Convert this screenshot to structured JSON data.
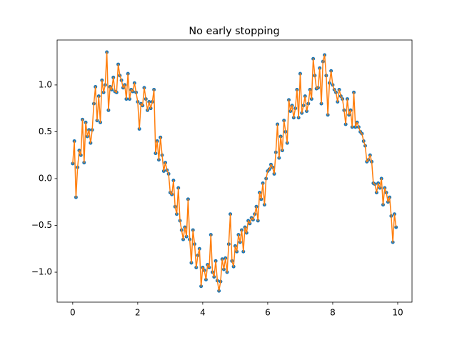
{
  "chart_data": {
    "type": "scatter-line",
    "title": "No early stopping",
    "x": [
      0,
      0.05,
      0.1,
      0.15,
      0.2,
      0.25,
      0.3,
      0.35,
      0.4,
      0.45,
      0.5,
      0.55,
      0.6,
      0.65,
      0.7,
      0.75,
      0.8,
      0.85,
      0.9,
      0.95,
      1,
      1.05,
      1.1,
      1.15,
      1.2,
      1.25,
      1.3,
      1.35,
      1.4,
      1.45,
      1.5,
      1.55,
      1.6,
      1.65,
      1.7,
      1.75,
      1.8,
      1.85,
      1.9,
      1.95,
      2,
      2.05,
      2.1,
      2.15,
      2.2,
      2.25,
      2.3,
      2.35,
      2.4,
      2.45,
      2.5,
      2.55,
      2.6,
      2.65,
      2.7,
      2.75,
      2.8,
      2.85,
      2.9,
      2.95,
      3,
      3.05,
      3.1,
      3.15,
      3.2,
      3.25,
      3.3,
      3.35,
      3.4,
      3.45,
      3.5,
      3.55,
      3.6,
      3.65,
      3.7,
      3.75,
      3.8,
      3.85,
      3.9,
      3.95,
      4,
      4.05,
      4.1,
      4.15,
      4.2,
      4.25,
      4.3,
      4.35,
      4.4,
      4.45,
      4.5,
      4.55,
      4.6,
      4.65,
      4.7,
      4.75,
      4.8,
      4.85,
      4.9,
      4.95,
      5,
      5.05,
      5.1,
      5.15,
      5.2,
      5.25,
      5.3,
      5.35,
      5.4,
      5.45,
      5.5,
      5.55,
      5.6,
      5.65,
      5.7,
      5.75,
      5.8,
      5.85,
      5.9,
      5.95,
      6,
      6.05,
      6.1,
      6.15,
      6.2,
      6.25,
      6.3,
      6.35,
      6.4,
      6.45,
      6.5,
      6.55,
      6.6,
      6.65,
      6.7,
      6.75,
      6.8,
      6.85,
      6.9,
      6.95,
      7,
      7.05,
      7.1,
      7.15,
      7.2,
      7.25,
      7.3,
      7.35,
      7.4,
      7.45,
      7.5,
      7.55,
      7.6,
      7.65,
      7.7,
      7.75,
      7.8,
      7.85,
      7.9,
      7.95,
      8,
      8.05,
      8.1,
      8.15,
      8.2,
      8.25,
      8.3,
      8.35,
      8.4,
      8.45,
      8.5,
      8.55,
      8.6,
      8.65,
      8.7,
      8.75,
      8.8,
      8.85,
      8.9,
      8.95,
      9,
      9.05,
      9.1,
      9.15,
      9.2,
      9.25,
      9.3,
      9.35,
      9.4,
      9.45,
      9.5,
      9.55,
      9.6,
      9.65,
      9.7,
      9.75,
      9.8,
      9.85,
      9.9,
      9.95
    ],
    "values": [
      0.16,
      0.4,
      -0.2,
      0.12,
      0.3,
      0.25,
      0.63,
      0.17,
      0.6,
      0.45,
      0.52,
      0.38,
      0.52,
      0.8,
      0.98,
      0.62,
      0.88,
      0.6,
      1.05,
      0.92,
      1.0,
      1.35,
      0.73,
      0.98,
      0.95,
      1.08,
      0.93,
      0.92,
      1.22,
      1.1,
      1.05,
      0.97,
      1.0,
      0.85,
      1.12,
      0.85,
      0.95,
      0.93,
      1.02,
      0.92,
      0.82,
      0.53,
      0.8,
      0.78,
      0.97,
      0.85,
      0.73,
      0.82,
      0.75,
      0.82,
      0.95,
      0.27,
      0.4,
      0.2,
      0.44,
      0.25,
      0.08,
      0.17,
      0.09,
      0.05,
      -0.15,
      -0.17,
      -0.02,
      -0.3,
      -0.38,
      -0.1,
      -0.45,
      -0.55,
      -0.65,
      -0.52,
      -0.62,
      -0.22,
      -0.65,
      -0.9,
      -0.55,
      -0.7,
      -0.95,
      -0.82,
      -0.75,
      -1.15,
      -0.95,
      -0.98,
      -1.08,
      -0.92,
      -0.95,
      -0.6,
      -1.0,
      -1.05,
      -0.88,
      -1.09,
      -1.2,
      -1.1,
      -0.86,
      -0.97,
      -0.85,
      -1.0,
      -0.7,
      -0.38,
      -0.88,
      -0.94,
      -0.72,
      -0.78,
      -0.6,
      -0.68,
      -0.55,
      -0.78,
      -0.52,
      -0.58,
      -0.45,
      -0.48,
      -0.42,
      -0.44,
      -0.38,
      -0.3,
      -0.45,
      -0.15,
      -0.22,
      -0.05,
      -0.28,
      0.0,
      0.08,
      0.1,
      0.15,
      0.12,
      0.05,
      0.28,
      0.58,
      0.22,
      0.45,
      0.3,
      0.62,
      0.5,
      0.38,
      0.84,
      0.72,
      0.78,
      0.65,
      0.75,
      0.95,
      0.65,
      1.12,
      0.7,
      0.78,
      0.88,
      0.72,
      0.8,
      0.95,
      0.85,
      1.28,
      1.1,
      0.96,
      0.97,
      1.18,
      0.8,
      1.25,
      1.32,
      1.1,
      0.68,
      1.02,
      1.15,
      1.0,
      0.95,
      0.92,
      0.82,
      0.95,
      0.88,
      0.85,
      0.73,
      0.58,
      0.85,
      0.68,
      0.73,
      0.55,
      0.92,
      0.55,
      0.6,
      0.55,
      0.5,
      0.48,
      0.4,
      0.35,
      0.18,
      0.2,
      0.25,
      0.18,
      -0.05,
      -0.06,
      -0.15,
      -0.05,
      -0.1,
      0.0,
      -0.28,
      -0.1,
      -0.15,
      -0.25,
      -0.2,
      -0.4,
      -0.68,
      -0.38,
      -0.52
    ],
    "point_color": "#1f77b4",
    "line_color": "#ff7f0e",
    "xlim": [
      -0.48,
      10.44
    ],
    "ylim": [
      -1.32,
      1.48
    ],
    "xticks": [
      0,
      2,
      4,
      6,
      8,
      10
    ],
    "yticks": [
      {
        "value": -1,
        "label": "−1.0"
      },
      {
        "value": -0.5,
        "label": "−0.5"
      },
      {
        "value": 0,
        "label": "0.0"
      },
      {
        "value": 0.5,
        "label": "0.5"
      },
      {
        "value": 1,
        "label": "1.0"
      }
    ]
  }
}
